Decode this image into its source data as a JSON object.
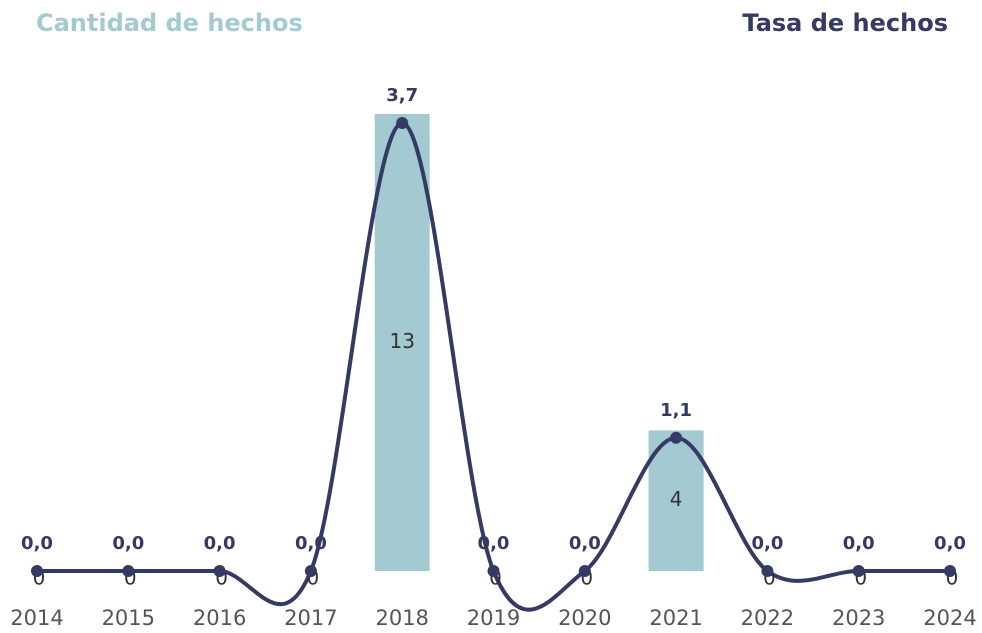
{
  "chart_data": {
    "type": "bar-line",
    "categories": [
      "2014",
      "2015",
      "2016",
      "2017",
      "2018",
      "2019",
      "2020",
      "2021",
      "2022",
      "2023",
      "2024"
    ],
    "series": [
      {
        "name": "Cantidad de hechos",
        "type": "bar",
        "color": "#a3cad0",
        "values": [
          0,
          0,
          0,
          0,
          13,
          0,
          0,
          4,
          0,
          0,
          0
        ]
      },
      {
        "name": "Tasa de hechos",
        "type": "line",
        "axis": "y2",
        "color": "#343a63",
        "values": [
          0.0,
          0.0,
          0.0,
          0.0,
          3.7,
          0.0,
          0.0,
          1.1,
          0.0,
          0.0,
          0.0
        ],
        "value_labels": [
          "0,0",
          "0,0",
          "0,0",
          "0,0",
          "3,7",
          "0,0",
          "0,0",
          "1,1",
          "0,0",
          "0,0",
          "0,0"
        ]
      }
    ]
  }
}
